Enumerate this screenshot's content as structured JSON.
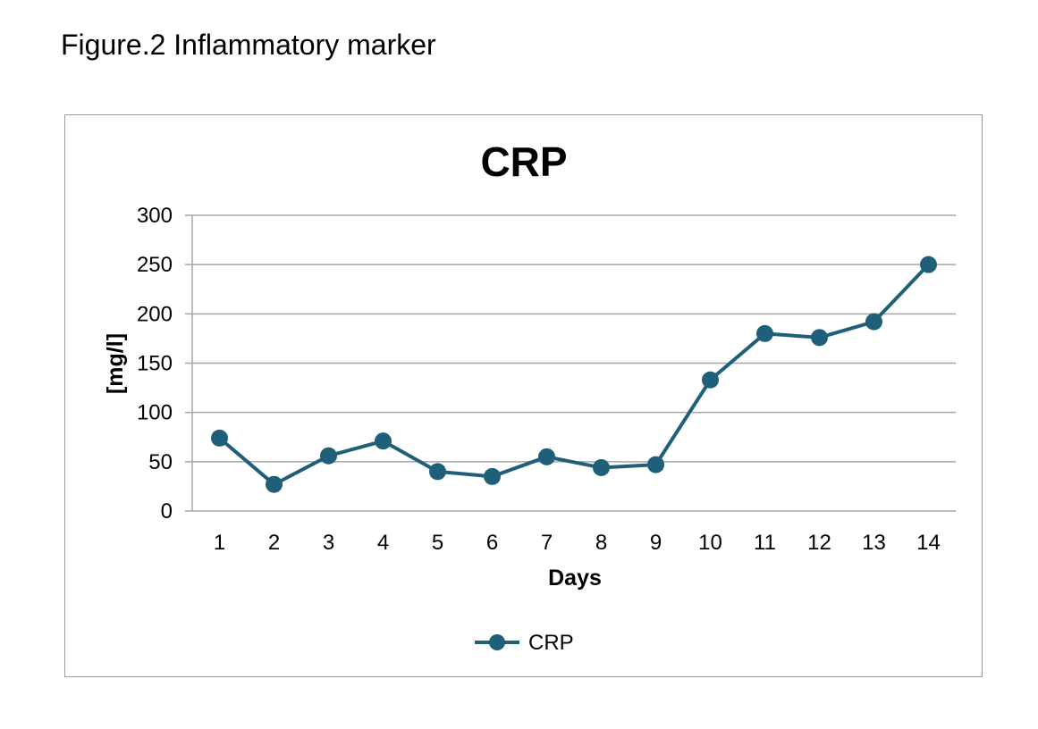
{
  "caption": "Figure.2 Inflammatory marker",
  "chart_data": {
    "type": "line",
    "title": "CRP",
    "xlabel": "Days",
    "ylabel": "[mg/l]",
    "ylim": [
      0,
      300
    ],
    "yticks": [
      0,
      50,
      100,
      150,
      200,
      250,
      300
    ],
    "categories": [
      "1",
      "2",
      "3",
      "4",
      "5",
      "6",
      "7",
      "8",
      "9",
      "10",
      "11",
      "12",
      "13",
      "14"
    ],
    "series": [
      {
        "name": "CRP",
        "color": "#1f5f7a",
        "values": [
          74,
          27,
          56,
          71,
          40,
          35,
          55,
          44,
          47,
          133,
          180,
          176,
          192,
          250
        ]
      }
    ],
    "grid": true,
    "legend": "bottom"
  }
}
